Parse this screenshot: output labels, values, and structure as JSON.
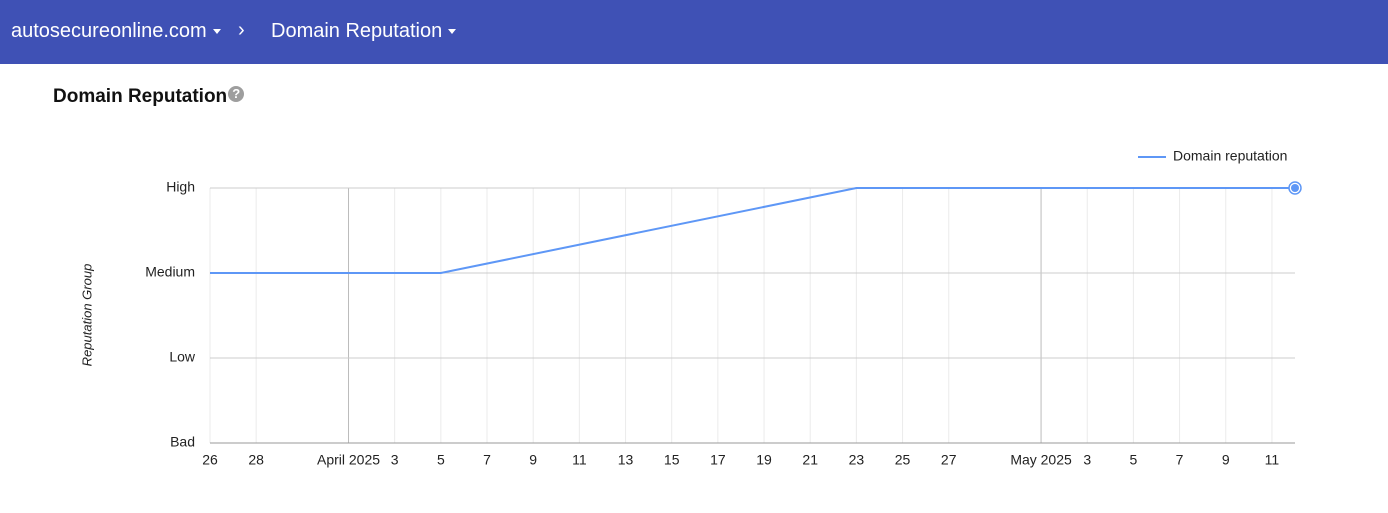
{
  "header": {
    "site": "autosecureonline.com",
    "page": "Domain Reputation"
  },
  "chart_data": {
    "type": "line",
    "title": "Domain Reputation",
    "y_label": "Reputation Group",
    "x": [
      "2025-03-26",
      "2025-04-05",
      "2025-04-23",
      "2025-05-12"
    ],
    "series": [
      {
        "name": "Domain reputation",
        "color": "#5e97f6",
        "values": [
          2,
          2,
          3,
          3
        ]
      }
    ],
    "xlim": [
      "2025-03-26",
      "2025-05-12"
    ],
    "ylim": [
      0,
      3
    ],
    "yticks": [
      {
        "value": 0,
        "label": "Bad"
      },
      {
        "value": 1,
        "label": "Low"
      },
      {
        "value": 2,
        "label": "Medium"
      },
      {
        "value": 3,
        "label": "High"
      }
    ],
    "xticks": [
      {
        "value": "2025-03-26",
        "label": "26"
      },
      {
        "value": "2025-03-28",
        "label": "28"
      },
      {
        "value": "2025-04-01",
        "label": "April 2025"
      },
      {
        "value": "2025-04-03",
        "label": "3"
      },
      {
        "value": "2025-04-05",
        "label": "5"
      },
      {
        "value": "2025-04-07",
        "label": "7"
      },
      {
        "value": "2025-04-09",
        "label": "9"
      },
      {
        "value": "2025-04-11",
        "label": "11"
      },
      {
        "value": "2025-04-13",
        "label": "13"
      },
      {
        "value": "2025-04-15",
        "label": "15"
      },
      {
        "value": "2025-04-17",
        "label": "17"
      },
      {
        "value": "2025-04-19",
        "label": "19"
      },
      {
        "value": "2025-04-21",
        "label": "21"
      },
      {
        "value": "2025-04-23",
        "label": "23"
      },
      {
        "value": "2025-04-25",
        "label": "25"
      },
      {
        "value": "2025-04-27",
        "label": "27"
      },
      {
        "value": "2025-05-01",
        "label": "May 2025"
      },
      {
        "value": "2025-05-03",
        "label": "3"
      },
      {
        "value": "2025-05-05",
        "label": "5"
      },
      {
        "value": "2025-05-07",
        "label": "7"
      },
      {
        "value": "2025-05-09",
        "label": "9"
      },
      {
        "value": "2025-05-11",
        "label": "11"
      }
    ],
    "grid": true,
    "legend": "top-right"
  }
}
